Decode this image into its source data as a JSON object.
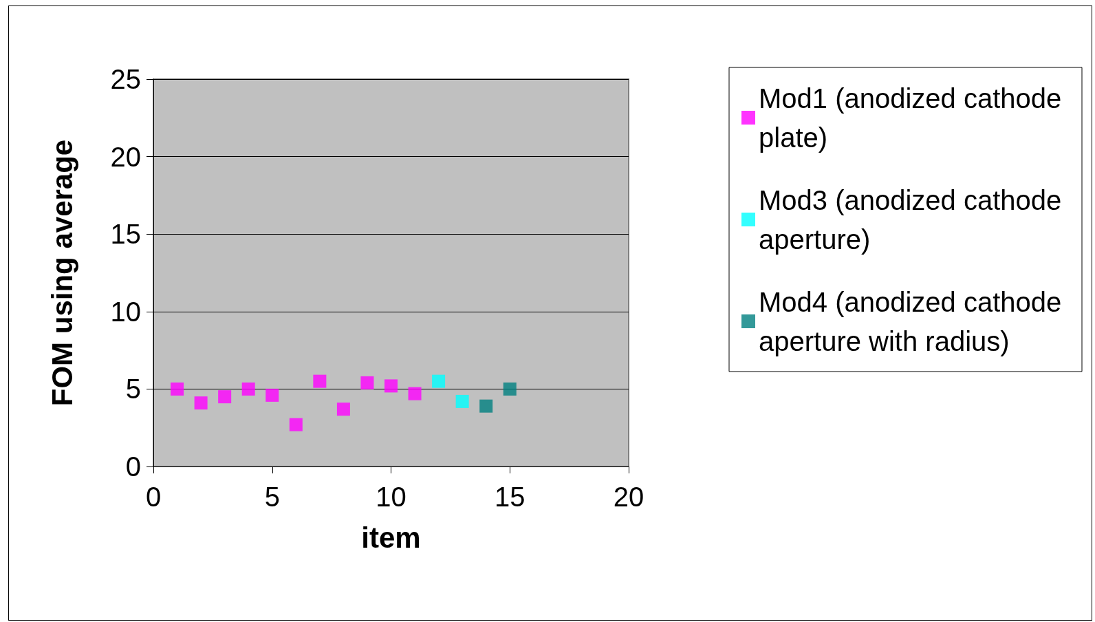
{
  "chart_data": {
    "type": "scatter",
    "xlabel": "item",
    "ylabel": "FOM using average",
    "xlim": [
      0,
      20
    ],
    "xticks": [
      0,
      5,
      10,
      15,
      20
    ],
    "ylim": [
      0,
      25
    ],
    "yticks": [
      0,
      5,
      10,
      15,
      20,
      25
    ],
    "grid": "y",
    "legend": "right",
    "marker": "square",
    "series": [
      {
        "name": "Mod1 (anodized cathode plate)",
        "color": "#ff00ff",
        "x": [
          1,
          2,
          3,
          4,
          5,
          6,
          7,
          8,
          9,
          10,
          11
        ],
        "values": [
          5.0,
          4.1,
          4.5,
          5.0,
          4.6,
          2.7,
          5.5,
          3.7,
          5.4,
          5.2,
          4.7
        ]
      },
      {
        "name": "Mod3 (anodized cathode aperture)",
        "color": "#00ffff",
        "x": [
          12,
          13
        ],
        "values": [
          5.5,
          4.2
        ]
      },
      {
        "name": "Mod4 (anodized cathode aperture with radius)",
        "color": "#008080",
        "x": [
          14,
          15
        ],
        "values": [
          3.9,
          5.0
        ]
      }
    ]
  }
}
